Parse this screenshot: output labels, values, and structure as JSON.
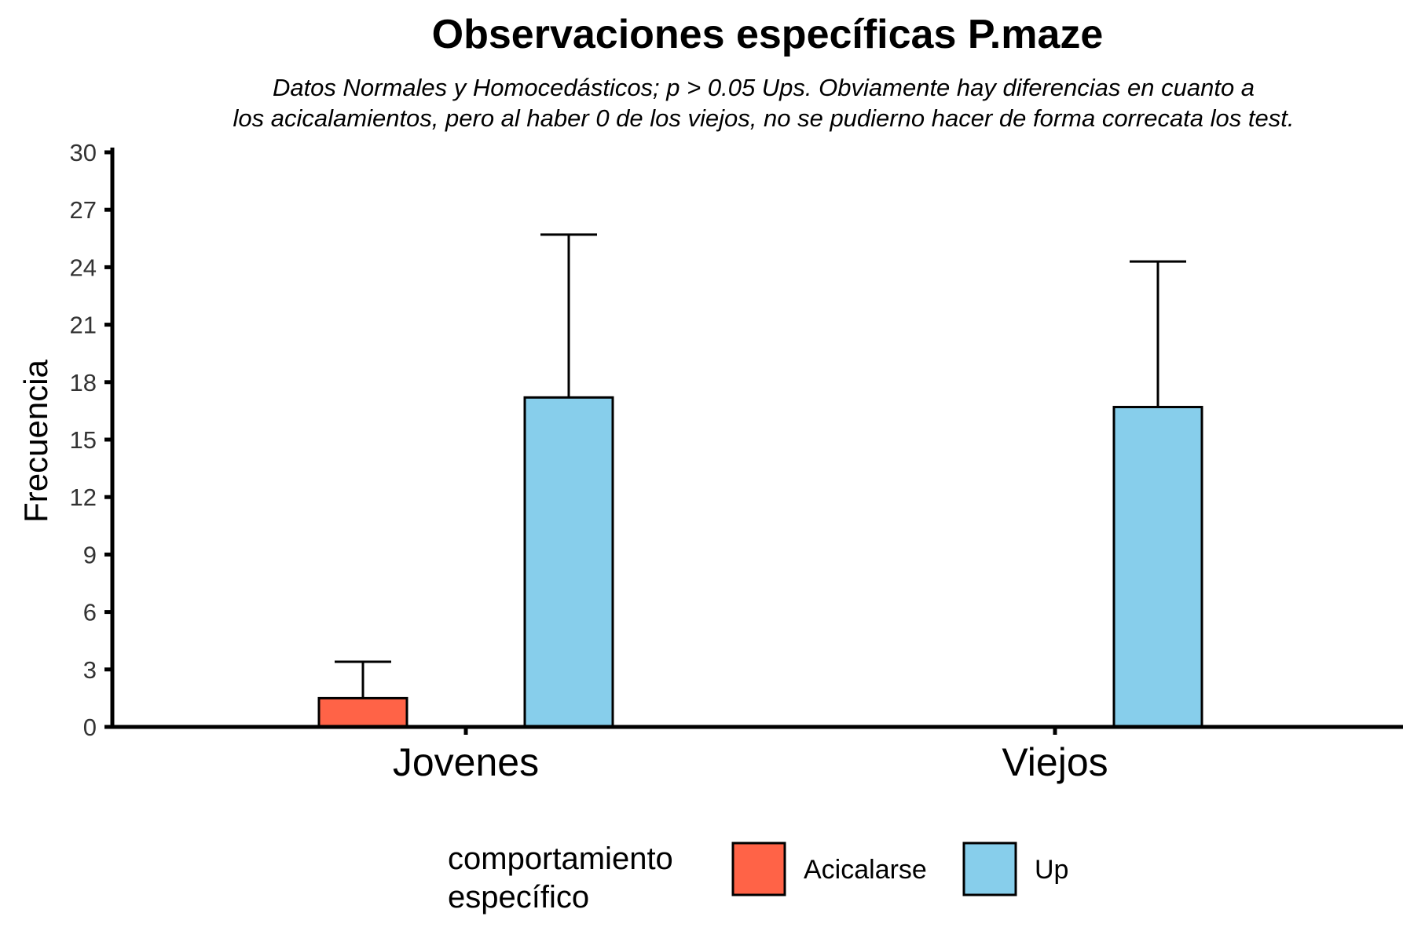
{
  "chart_data": {
    "type": "bar",
    "title": "Observaciones específicas P.maze",
    "subtitle": [
      "Datos Normales y Homocedásticos; p > 0.05 Ups. Obviamente hay diferencias en cuanto a",
      "los acicalamientos, pero al haber 0 de los viejos, no se pudierno hacer de forma correcata los test."
    ],
    "ylabel": "Frecuencia",
    "xlabel": "",
    "categories": [
      "Jovenes",
      "Viejos"
    ],
    "series": [
      {
        "name": "Acicalarse",
        "color": "#FF6347",
        "values": [
          1.5,
          0
        ],
        "error": [
          1.9,
          0
        ]
      },
      {
        "name": "Up",
        "color": "#87CEEB",
        "values": [
          17.2,
          16.7
        ],
        "error": [
          8.5,
          7.6
        ]
      }
    ],
    "ylim": [
      0,
      30
    ],
    "yticks": [
      0,
      3,
      6,
      9,
      12,
      15,
      18,
      21,
      24,
      27,
      30
    ],
    "legend": {
      "title": [
        "comportamiento",
        "específico"
      ],
      "position": "bottom"
    },
    "grid": false
  }
}
